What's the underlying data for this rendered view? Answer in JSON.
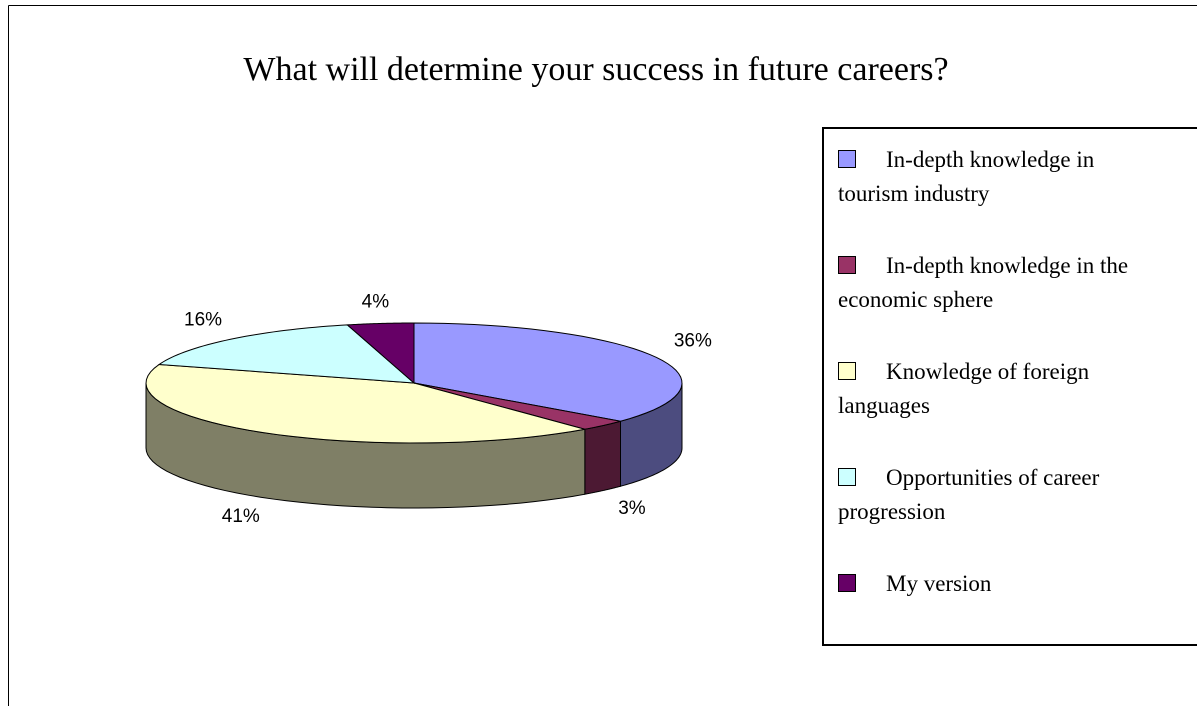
{
  "chart_data": {
    "type": "pie3d",
    "title": "What will determine your success in future careers?",
    "categories": [
      "In-depth knowledge in tourism industry",
      "In-depth knowledge in the economic sphere",
      "Knowledge of foreign languages",
      "Opportunities of career progression",
      "My version"
    ],
    "values": [
      36,
      3,
      41,
      16,
      4
    ],
    "value_labels": [
      "36%",
      "3%",
      "41%",
      "16%",
      "4%"
    ],
    "colors": [
      "#9999ff",
      "#993366",
      "#ffffcc",
      "#ccffff",
      "#660066"
    ],
    "legend": "right"
  }
}
